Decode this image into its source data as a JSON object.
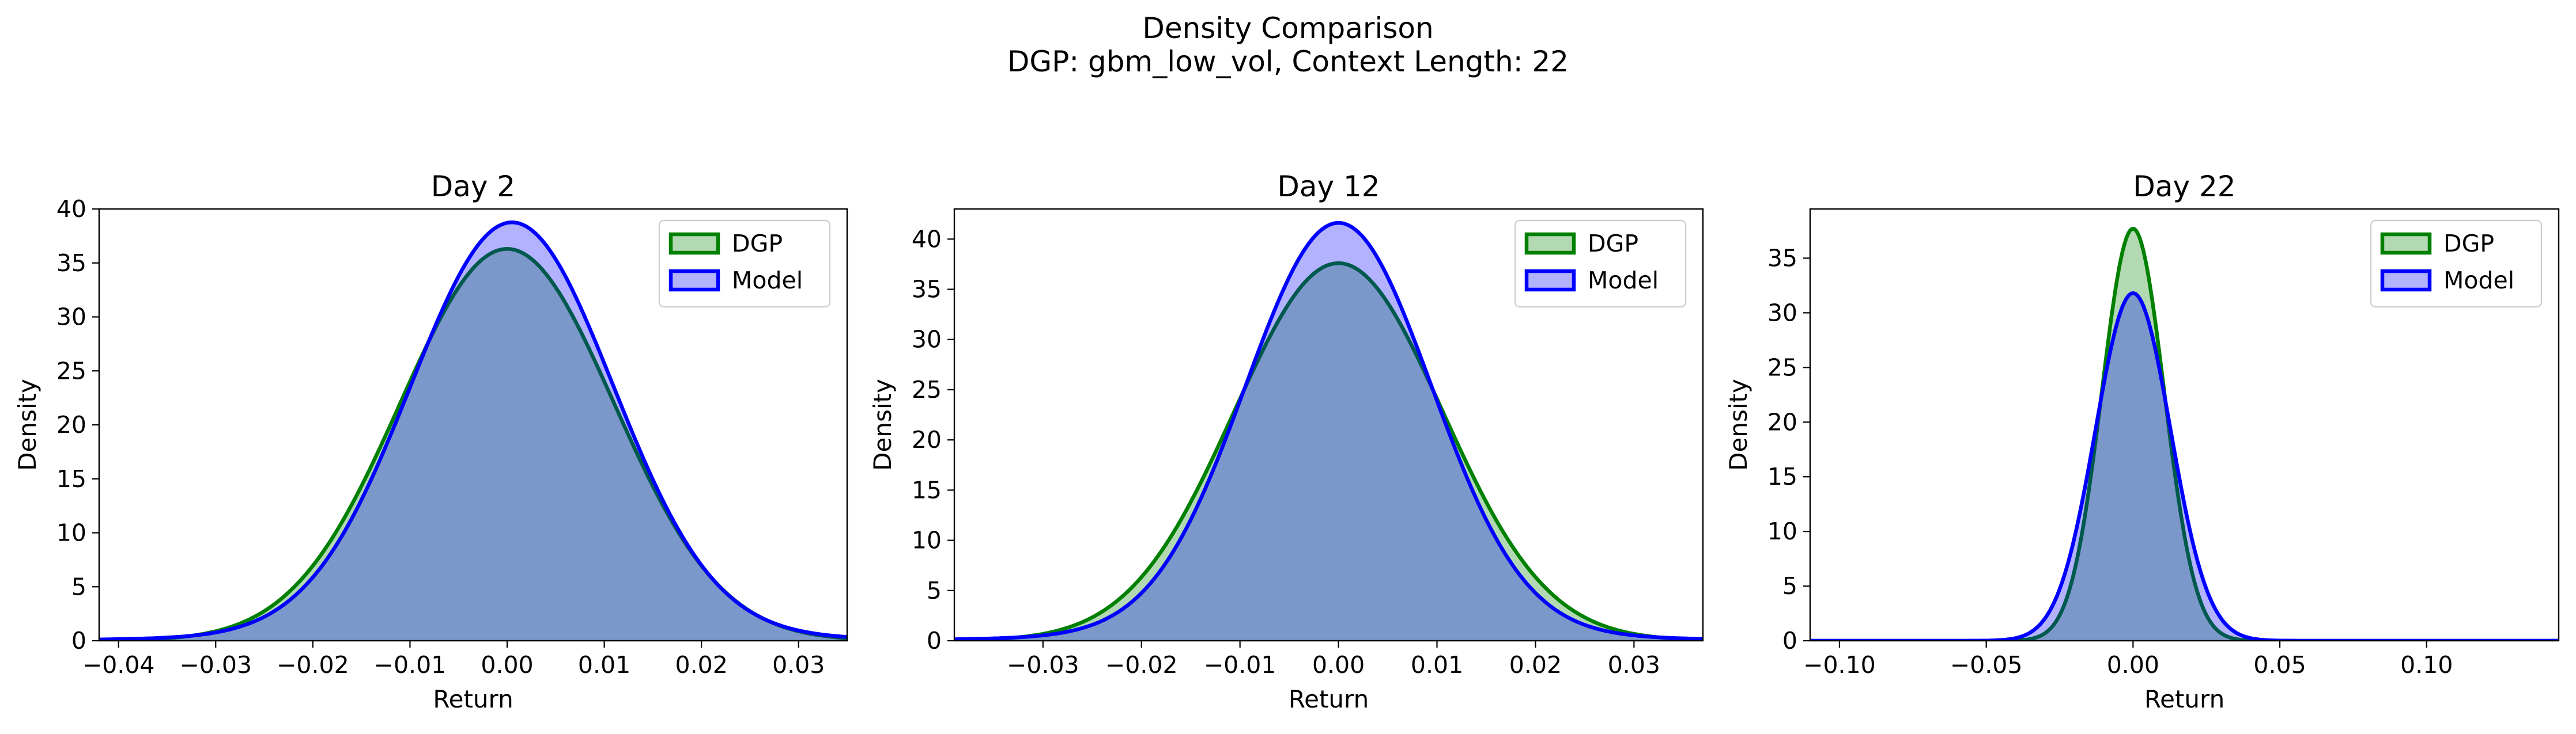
{
  "figure": {
    "title_line1": "Density Comparison",
    "title_line2": "DGP: gbm_low_vol, Context Length: 22"
  },
  "chart_data": [
    {
      "type": "area",
      "title": "Day 2",
      "xlabel": "Return",
      "ylabel": "Density",
      "xlim": [
        -0.042,
        0.035
      ],
      "ylim": [
        0,
        40
      ],
      "xticks": [
        -0.04,
        -0.03,
        -0.02,
        -0.01,
        0.0,
        0.01,
        0.02,
        0.03
      ],
      "xtick_labels": [
        "−0.04",
        "−0.03",
        "−0.02",
        "−0.01",
        "0.00",
        "0.01",
        "0.02",
        "0.03"
      ],
      "yticks": [
        0,
        5,
        10,
        15,
        20,
        25,
        30,
        35,
        40
      ],
      "ytick_labels": [
        "0",
        "5",
        "10",
        "15",
        "20",
        "25",
        "30",
        "35",
        "40"
      ],
      "grid": false,
      "legend_position": "top-right",
      "series": [
        {
          "name": "DGP",
          "color": "#008000",
          "fill": "#008000",
          "fill_opacity": 0.3,
          "peak_x": 0.0,
          "peak_density": 36.3,
          "std": 0.011
        },
        {
          "name": "Model",
          "color": "#0000ff",
          "fill": "#0000ff",
          "fill_opacity": 0.3,
          "peak_x": 0.0005,
          "peak_density": 38.3,
          "std": 0.0104,
          "tail_weight": 0.004
        }
      ]
    },
    {
      "type": "area",
      "title": "Day 12",
      "xlabel": "Return",
      "ylabel": "Density",
      "xlim": [
        -0.039,
        0.037
      ],
      "ylim": [
        0,
        43
      ],
      "xticks": [
        -0.03,
        -0.02,
        -0.01,
        0.0,
        0.01,
        0.02,
        0.03
      ],
      "xtick_labels": [
        "−0.03",
        "−0.02",
        "−0.01",
        "0.00",
        "0.01",
        "0.02",
        "0.03"
      ],
      "yticks": [
        0,
        5,
        10,
        15,
        20,
        25,
        30,
        35,
        40
      ],
      "ytick_labels": [
        "0",
        "5",
        "10",
        "15",
        "20",
        "25",
        "30",
        "35",
        "40"
      ],
      "grid": false,
      "legend_position": "top-right",
      "series": [
        {
          "name": "DGP",
          "color": "#008000",
          "fill": "#008000",
          "fill_opacity": 0.3,
          "peak_x": 0.0,
          "peak_density": 37.6,
          "std": 0.0106
        },
        {
          "name": "Model",
          "color": "#0000ff",
          "fill": "#0000ff",
          "fill_opacity": 0.3,
          "peak_x": 0.0,
          "peak_density": 41.0,
          "std": 0.0094,
          "tail_weight": 0.005
        }
      ]
    },
    {
      "type": "area",
      "title": "Day 22",
      "xlabel": "Return",
      "ylabel": "Density",
      "xlim": [
        -0.11,
        0.145
      ],
      "ylim": [
        0,
        39.5
      ],
      "xticks": [
        -0.1,
        -0.05,
        0.0,
        0.05,
        0.1
      ],
      "xtick_labels": [
        "−0.10",
        "−0.05",
        "0.00",
        "0.05",
        "0.10"
      ],
      "yticks": [
        0,
        5,
        10,
        15,
        20,
        25,
        30,
        35
      ],
      "ytick_labels": [
        "0",
        "5",
        "10",
        "15",
        "20",
        "25",
        "30",
        "35"
      ],
      "grid": false,
      "legend_position": "top-right",
      "series": [
        {
          "name": "DGP",
          "color": "#008000",
          "fill": "#008000",
          "fill_opacity": 0.3,
          "peak_x": 0.0,
          "peak_density": 37.7,
          "std": 0.0106
        },
        {
          "name": "Model",
          "color": "#0000ff",
          "fill": "#0000ff",
          "fill_opacity": 0.3,
          "peak_x": 0.0,
          "peak_density": 31.8,
          "std": 0.0128
        }
      ]
    }
  ]
}
